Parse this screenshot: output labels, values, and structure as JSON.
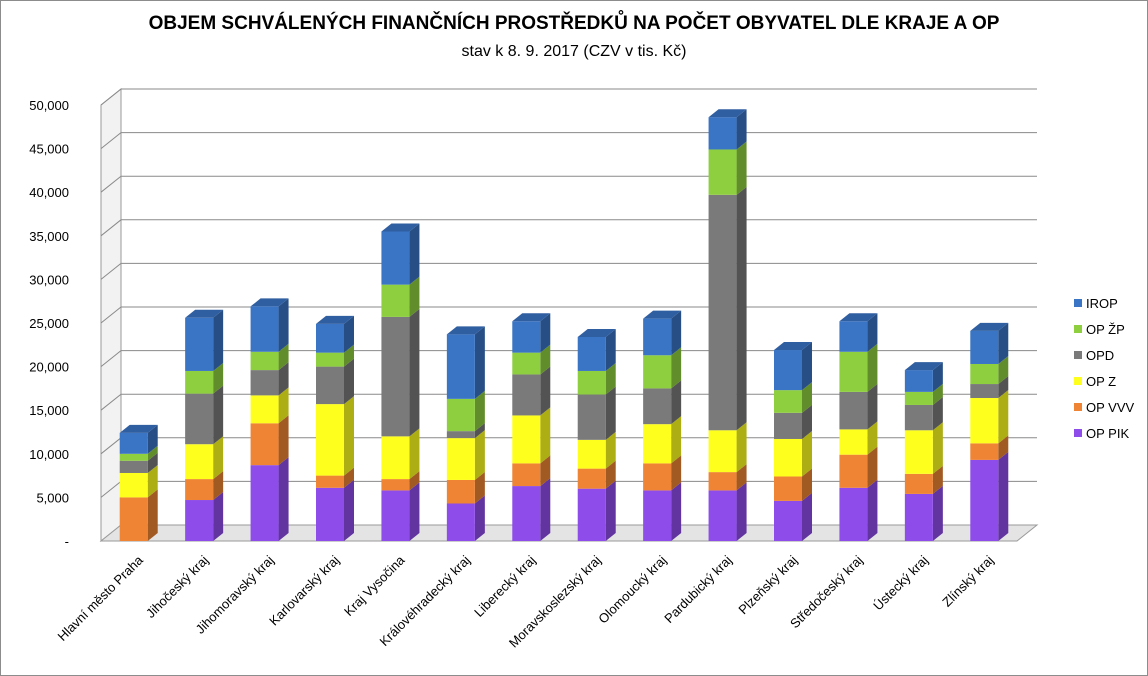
{
  "chart_data": {
    "type": "bar",
    "stacked": true,
    "three_d": true,
    "title": "OBJEM SCHVÁLENÝCH FINANČNÍCH PROSTŘEDKŮ NA POČET OBYVATEL DLE KRAJE A OP",
    "subtitle": "stav k 8. 9. 2017 (CZV v tis. Kč)",
    "xlabel": "",
    "ylabel": "",
    "ylim": [
      0,
      50000
    ],
    "yticks": [
      "-",
      "5,000",
      "10,000",
      "15,000",
      "20,000",
      "25,000",
      "30,000",
      "35,000",
      "40,000",
      "45,000",
      "50,000"
    ],
    "grid": true,
    "legend_position": "right",
    "categories": [
      "Hlavní město Praha",
      "Jihočeský kraj",
      "Jihomoravský kraj",
      "Karlovarský kraj",
      "Kraj Vysočina",
      "Královéhradecký kraj",
      "Liberecký kraj",
      "Moravskoslezský kraj",
      "Olomoucký kraj",
      "Pardubický kraj",
      "Plzeňský kraj",
      "Středočeský kraj",
      "Ústecký kraj",
      "Zlínský kraj"
    ],
    "series": [
      {
        "name": "OP PIK",
        "color": "#8e4dea",
        "values": [
          0,
          4700,
          8700,
          6100,
          5800,
          4300,
          6300,
          6000,
          5800,
          5800,
          4600,
          6100,
          5400,
          9300
        ]
      },
      {
        "name": "OP VVV",
        "color": "#ee8434",
        "values": [
          5000,
          2400,
          4800,
          1400,
          1300,
          2700,
          2600,
          2300,
          3100,
          2100,
          2800,
          3800,
          2300,
          1900
        ]
      },
      {
        "name": "OP Z",
        "color": "#ffff1e",
        "values": [
          2800,
          4000,
          3200,
          8200,
          4900,
          4800,
          5500,
          3300,
          4500,
          4800,
          4300,
          2900,
          5000,
          5200
        ]
      },
      {
        "name": "OPD",
        "color": "#7a7a7a",
        "values": [
          1400,
          5800,
          2900,
          4300,
          13700,
          800,
          4700,
          5200,
          4100,
          27000,
          3000,
          4300,
          2900,
          1600
        ]
      },
      {
        "name": "OP ŽP",
        "color": "#8ecf3f",
        "values": [
          800,
          2600,
          2100,
          1600,
          3700,
          3700,
          2500,
          2700,
          3800,
          5200,
          2600,
          4600,
          1500,
          2300
        ]
      },
      {
        "name": "IROP",
        "color": "#3a74c4",
        "values": [
          2400,
          6100,
          5200,
          3300,
          6100,
          7400,
          3600,
          3900,
          4200,
          3700,
          4600,
          3500,
          2500,
          3800
        ]
      }
    ],
    "legend_order": [
      "IROP",
      "OP ŽP",
      "OPD",
      "OP Z",
      "OP VVV",
      "OP PIK"
    ]
  }
}
